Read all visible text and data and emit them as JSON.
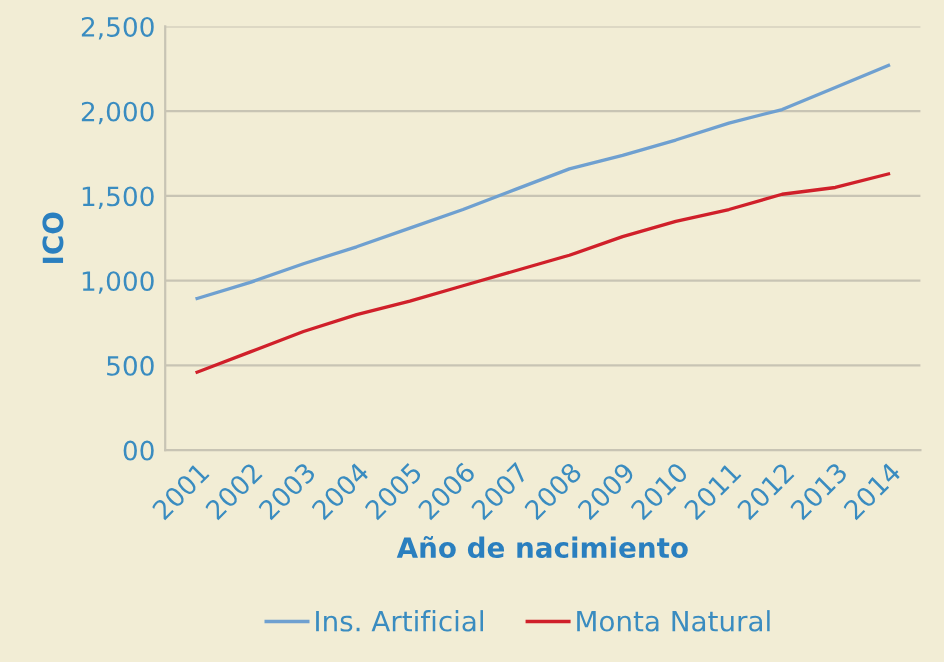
{
  "chart_data": {
    "type": "line",
    "xlabel": "Año de nacimiento",
    "ylabel": "ICO",
    "categories": [
      "2001",
      "2002",
      "2003",
      "2004",
      "2005",
      "2006",
      "2007",
      "2008",
      "2009",
      "2010",
      "2011",
      "2012",
      "2013",
      "2014"
    ],
    "series": [
      {
        "name": "Ins. Artificial",
        "color": "#6fa0d0",
        "values": [
          895,
          990,
          1100,
          1200,
          1310,
          1420,
          1540,
          1660,
          1740,
          1830,
          1930,
          2010,
          2140,
          2270
        ]
      },
      {
        "name": "Monta Natural",
        "color": "#d0202a",
        "values": [
          460,
          580,
          700,
          800,
          880,
          970,
          1060,
          1150,
          1260,
          1350,
          1420,
          1510,
          1550,
          1630
        ]
      }
    ],
    "ylim": [
      0,
      2500
    ],
    "yticks": [
      {
        "value": 0,
        "label": "00"
      },
      {
        "value": 500,
        "label": "500"
      },
      {
        "value": 1000,
        "label": "1,000"
      },
      {
        "value": 1500,
        "label": "1,500"
      },
      {
        "value": 2000,
        "label": "2,000"
      },
      {
        "value": 2500,
        "label": "2,500"
      }
    ],
    "grid": "y",
    "legend": "bottom",
    "marker": "none",
    "line_style": "solid"
  }
}
